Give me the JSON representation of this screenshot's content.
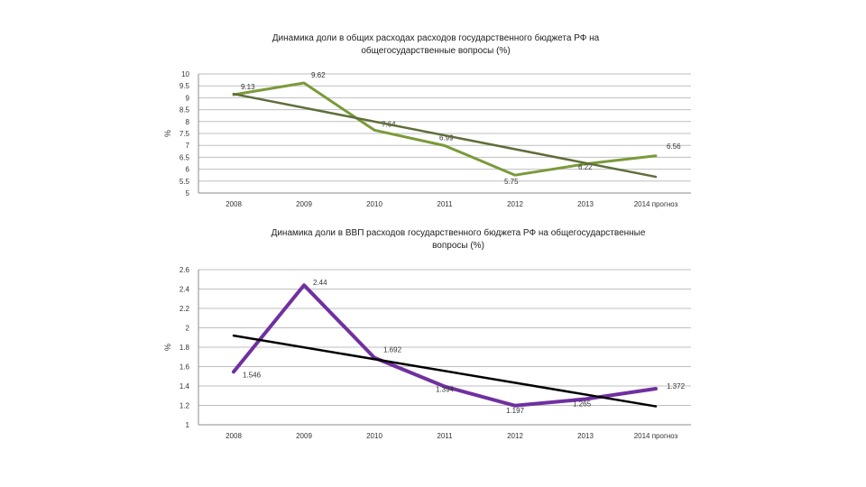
{
  "chart_data": [
    {
      "type": "line",
      "title_lines": [
        "Динамика доли в общих расходах расходов государственного бюджета РФ на",
        "общегосударственные вопросы (%)"
      ],
      "ylabel": "%",
      "categories": [
        "2008",
        "2009",
        "2010",
        "2011",
        "2012",
        "2013",
        "2014 прогноз"
      ],
      "yticks": [
        "10",
        "9.5",
        "9",
        "8.5",
        "8",
        "7.5",
        "7",
        "6.5",
        "6",
        "5.5",
        "5"
      ],
      "ylim": [
        5,
        10
      ],
      "grid": true,
      "series": [
        {
          "values": [
            9.13,
            9.62,
            7.64,
            6.99,
            5.75,
            6.22,
            6.56
          ],
          "labels": [
            "9.13",
            "9.62",
            "7.64",
            "6.99",
            "5.75",
            "6.22",
            "6.56"
          ],
          "color": "#7a9a3a"
        },
        {
          "kind": "trendline",
          "values": [
            9.16,
            8.58,
            8.0,
            7.42,
            6.84,
            6.26,
            5.68
          ],
          "color": "#5f6e39"
        }
      ]
    },
    {
      "type": "line",
      "title_lines": [
        "Динамика доли в ВВП расходов государственного бюджета РФ на общегосударственные",
        "вопросы (%)"
      ],
      "ylabel": "%",
      "categories": [
        "2008",
        "2009",
        "2010",
        "2011",
        "2012",
        "2013",
        "2014 прогноз"
      ],
      "yticks": [
        "2.6",
        "2.4",
        "2.2",
        "2",
        "1.8",
        "1.6",
        "1.4",
        "1.2",
        "1"
      ],
      "ylim": [
        1,
        2.6
      ],
      "grid": true,
      "series": [
        {
          "values": [
            1.546,
            2.44,
            1.692,
            1.394,
            1.197,
            1.265,
            1.372
          ],
          "labels": [
            "1.546",
            "2.44",
            "1.692",
            "1.394",
            "1.197",
            "1.265",
            "1.372"
          ],
          "color": "#7030a0"
        },
        {
          "kind": "trendline",
          "values": [
            1.92,
            1.8,
            1.68,
            1.56,
            1.44,
            1.32,
            1.19
          ],
          "color": "#000000"
        }
      ]
    }
  ]
}
